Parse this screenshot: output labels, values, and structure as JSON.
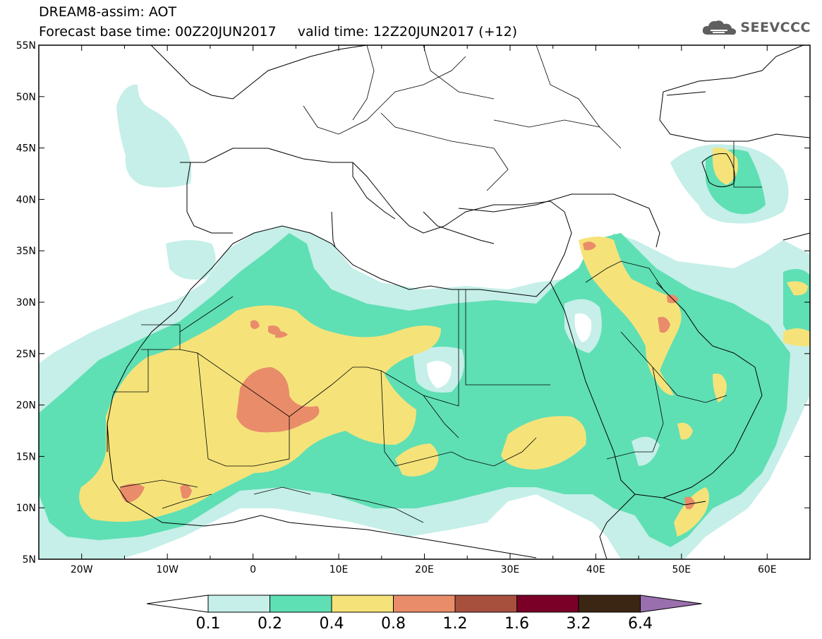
{
  "header": {
    "title_line1": "DREAM8-assim: AOT",
    "title_line2": "Forecast base time: 00Z20JUN2017     valid time: 12Z20JUN2017 (+12)",
    "logo_text": "SEEVCCC",
    "logo_icon": "cloud-icon"
  },
  "map": {
    "lon_range": [
      -25,
      65
    ],
    "lat_range": [
      5,
      55
    ],
    "lon_ticks": [
      "20W",
      "10W",
      "0",
      "10E",
      "20E",
      "30E",
      "40E",
      "50E",
      "60E"
    ],
    "lat_ticks": [
      "55N",
      "50N",
      "45N",
      "40N",
      "35N",
      "30N",
      "25N",
      "20N",
      "15N",
      "10N",
      "5N"
    ]
  },
  "colorbar": {
    "labels": [
      "0.1",
      "0.2",
      "0.4",
      "0.8",
      "1.2",
      "1.6",
      "3.2",
      "6.4"
    ],
    "colors": [
      "#ffffff",
      "#c5efe8",
      "#5fdfb4",
      "#f5e37a",
      "#e98c6a",
      "#a8503e",
      "#7a0028",
      "#3a2612",
      "#9a6fae"
    ]
  }
}
